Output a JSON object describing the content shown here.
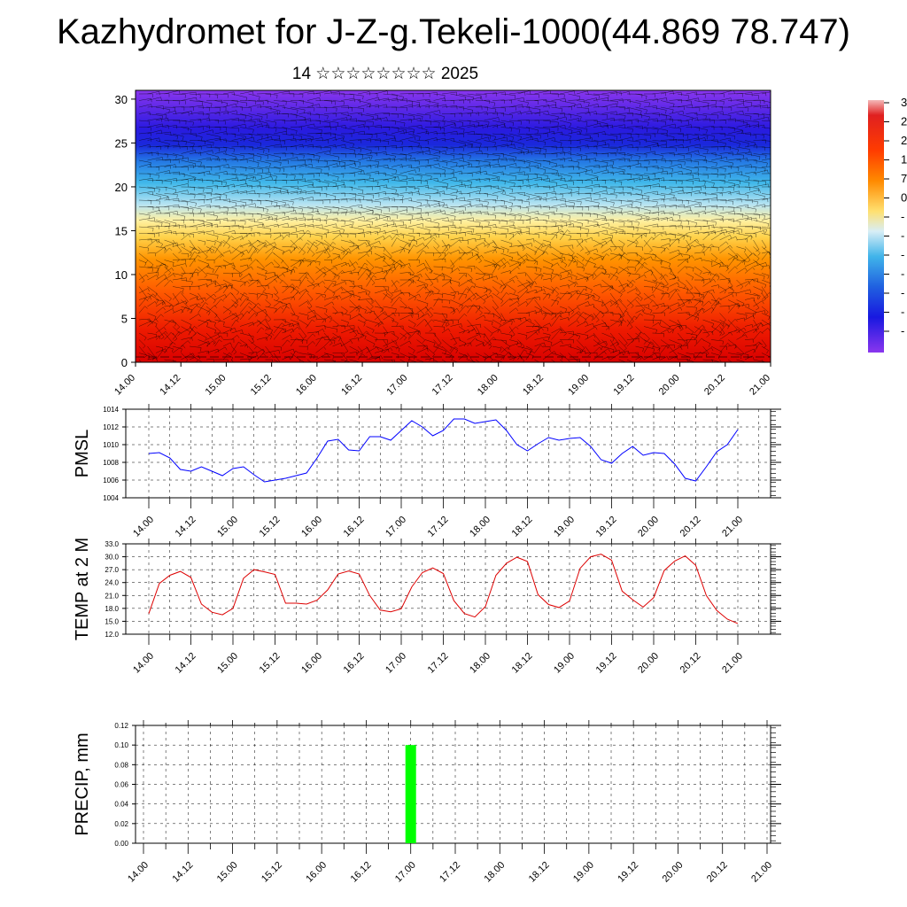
{
  "title": "Kazhydromet for J-Z-g.Tekeli-1000(44.869 78.747)",
  "subtitle": "14 ☆☆☆☆☆☆☆☆ 2025",
  "time_ticks": [
    "14.00",
    "14.12",
    "15.00",
    "15.12",
    "16.00",
    "16.12",
    "17.00",
    "17.12",
    "18.00",
    "18.12",
    "19.00",
    "19.12",
    "20.00",
    "20.12",
    "21.00"
  ],
  "colorbar": {
    "visible_labels": [
      "3",
      "2",
      "2",
      "1",
      "7",
      "0",
      "-",
      "-",
      "-",
      "-",
      "-",
      "-",
      "-"
    ],
    "colors": [
      "#f4b0b0",
      "#e02020",
      "#ff3300",
      "#ff7700",
      "#ffd040",
      "#fff2a0",
      "#a8dcf0",
      "#30b0e8",
      "#2070e0",
      "#1a20e0",
      "#8030e8"
    ]
  },
  "chart_data": [
    {
      "type": "heatmap",
      "panel": "cross-section",
      "description_free": true,
      "x": [
        "14.00",
        "14.12",
        "15.00",
        "15.12",
        "16.00",
        "16.12",
        "17.00",
        "17.12",
        "18.00",
        "18.12",
        "19.00",
        "19.12",
        "20.00",
        "20.12",
        "21.00"
      ],
      "ylim": [
        0,
        31
      ],
      "yticks": [
        0,
        5,
        10,
        15,
        20,
        25,
        30
      ]
    },
    {
      "type": "line",
      "panel": "pmsl",
      "ylabel": "PMSL",
      "ylim": [
        1004,
        1014
      ],
      "yticks": [
        "1004",
        "1006",
        "1008",
        "1010",
        "1012",
        "1014"
      ],
      "color": "#0000ff",
      "x_hours": [
        0,
        3,
        6,
        9,
        12,
        15,
        18,
        21,
        24,
        27,
        30,
        33,
        36,
        39,
        42,
        45,
        48,
        51,
        54,
        57,
        60,
        63,
        66,
        69,
        72,
        75,
        78,
        81,
        84,
        87,
        90,
        93,
        96,
        99,
        102,
        105,
        108,
        111,
        114,
        117,
        120,
        123,
        126,
        129,
        132,
        135,
        138,
        141,
        144,
        147,
        150,
        153,
        156,
        159,
        162,
        165,
        168
      ],
      "values": [
        1009.0,
        1009.1,
        1008.5,
        1007.2,
        1007.0,
        1007.5,
        1007.0,
        1006.5,
        1007.3,
        1007.5,
        1006.6,
        1005.8,
        1006.0,
        1006.2,
        1006.5,
        1006.8,
        1008.5,
        1010.4,
        1010.6,
        1009.4,
        1009.3,
        1010.9,
        1010.9,
        1010.5,
        1011.6,
        1012.7,
        1012.0,
        1011.0,
        1011.6,
        1012.9,
        1012.9,
        1012.4,
        1012.6,
        1012.8,
        1011.6,
        1010.0,
        1009.3,
        1010.1,
        1010.8,
        1010.5,
        1010.7,
        1010.8,
        1009.8,
        1008.3,
        1007.9,
        1009.0,
        1009.8,
        1008.8,
        1009.1,
        1009.0,
        1007.8,
        1006.2,
        1005.9,
        1007.5,
        1009.2,
        1010.0,
        1011.7
      ]
    },
    {
      "type": "line",
      "panel": "temp",
      "ylabel": "TEMP at 2 M",
      "ylim": [
        12,
        33
      ],
      "yticks": [
        "12.0",
        "15.0",
        "18.0",
        "21.0",
        "24.0",
        "27.0",
        "30.0",
        "33.0"
      ],
      "color": "#dd0000",
      "x_hours": [
        0,
        3,
        6,
        9,
        12,
        15,
        18,
        21,
        24,
        27,
        30,
        33,
        36,
        39,
        42,
        45,
        48,
        51,
        54,
        57,
        60,
        63,
        66,
        69,
        72,
        75,
        78,
        81,
        84,
        87,
        90,
        93,
        96,
        99,
        102,
        105,
        108,
        111,
        114,
        117,
        120,
        123,
        126,
        129,
        132,
        135,
        138,
        141,
        144,
        147,
        150,
        153,
        156,
        159,
        162,
        165,
        168
      ],
      "values": [
        16.8,
        23.8,
        25.7,
        26.6,
        25.2,
        19.0,
        17.1,
        16.5,
        18.0,
        25.0,
        27.0,
        26.5,
        25.9,
        19.2,
        19.2,
        19.0,
        19.9,
        22.3,
        26.0,
        26.7,
        26.0,
        21.0,
        17.6,
        17.2,
        17.9,
        23.0,
        26.3,
        27.4,
        26.1,
        19.8,
        16.8,
        16.0,
        18.4,
        25.7,
        28.5,
        29.9,
        28.9,
        21.2,
        18.9,
        18.2,
        19.7,
        27.3,
        30.0,
        30.6,
        29.2,
        22.0,
        20.0,
        18.3,
        20.5,
        26.8,
        29.0,
        30.2,
        28.0,
        21.0,
        17.5,
        15.5,
        14.5
      ]
    },
    {
      "type": "bar",
      "panel": "precip",
      "ylabel": "PRECIP, mm",
      "ylim": [
        0,
        0.12
      ],
      "yticks": [
        "0.00",
        "0.02",
        "0.04",
        "0.06",
        "0.08",
        "0.10",
        "0.12"
      ],
      "color": "#00ff00",
      "bars": [
        {
          "x_hour": 72,
          "value": 0.1
        }
      ]
    }
  ]
}
